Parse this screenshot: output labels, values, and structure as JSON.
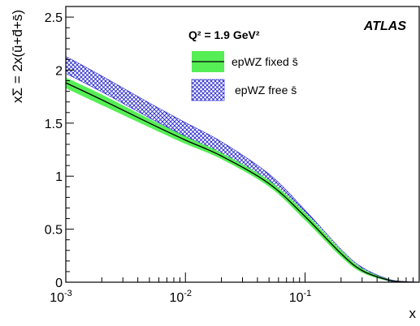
{
  "chart_data": {
    "type": "line",
    "title": "",
    "xlabel": "x",
    "ylabel": "xΣ = 2x(ū+d̄+s̄)",
    "x_scale": "log",
    "xlim": [
      0.001,
      0.9
    ],
    "ylim": [
      0,
      2.6
    ],
    "grid": false,
    "legend_position": "top-center",
    "annotations": {
      "experiment": "ATLAS",
      "scale_text": "Q² = 1.9 GeV²"
    },
    "x_ticks": [
      {
        "value": 0.001,
        "base": "10",
        "exp": "-3"
      },
      {
        "value": 0.01,
        "base": "10",
        "exp": "-2"
      },
      {
        "value": 0.1,
        "base": "10",
        "exp": "-1"
      }
    ],
    "y_ticks": [
      {
        "value": 0,
        "label": "0"
      },
      {
        "value": 0.5,
        "label": "0.5"
      },
      {
        "value": 1,
        "label": "1"
      },
      {
        "value": 1.5,
        "label": "1.5"
      },
      {
        "value": 2,
        "label": "2"
      },
      {
        "value": 2.5,
        "label": "2.5"
      }
    ],
    "series": [
      {
        "name": "epWZ fixed s̄",
        "style": "solid-band",
        "line_color": "#000000",
        "band_color": "#55ee55",
        "x": [
          0.001,
          0.002,
          0.005,
          0.01,
          0.02,
          0.05,
          0.1,
          0.2,
          0.3,
          0.5,
          0.7,
          0.9
        ],
        "y": [
          1.88,
          1.72,
          1.5,
          1.34,
          1.19,
          0.93,
          0.62,
          0.27,
          0.11,
          0.02,
          0.003,
          0.0
        ],
        "y_err": [
          0.05,
          0.05,
          0.04,
          0.035,
          0.03,
          0.03,
          0.035,
          0.03,
          0.02,
          0.008,
          0.003,
          0.0
        ]
      },
      {
        "name": "epWZ free s̄",
        "style": "hatched-band",
        "band_color": "#2222cc",
        "x": [
          0.001,
          0.002,
          0.005,
          0.01,
          0.02,
          0.05,
          0.1,
          0.2,
          0.3,
          0.5,
          0.7,
          0.9
        ],
        "y": [
          2.05,
          1.87,
          1.62,
          1.44,
          1.27,
          0.98,
          0.64,
          0.28,
          0.12,
          0.02,
          0.003,
          0.0
        ],
        "y_err": [
          0.08,
          0.075,
          0.07,
          0.065,
          0.055,
          0.04,
          0.04,
          0.03,
          0.02,
          0.008,
          0.003,
          0.0
        ]
      }
    ]
  }
}
